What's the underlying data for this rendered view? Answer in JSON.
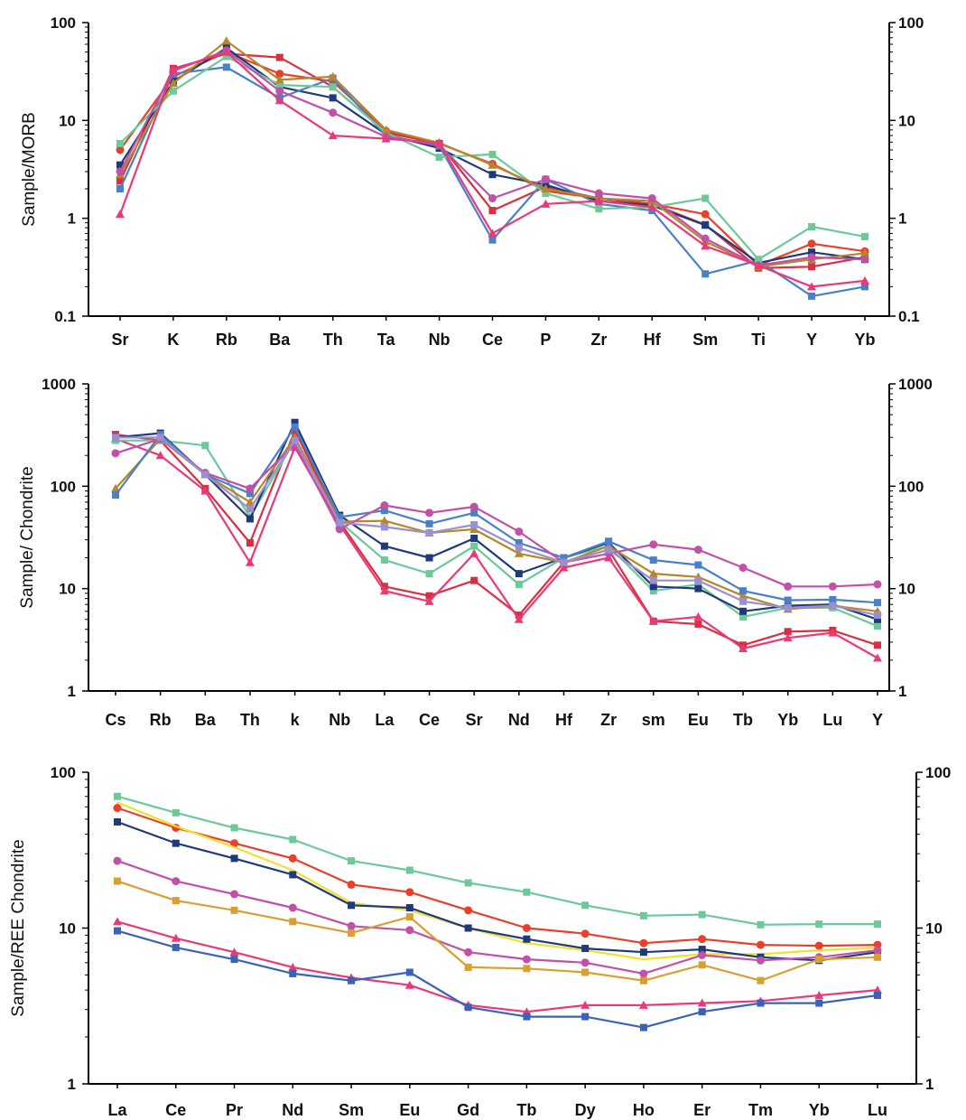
{
  "chart_data": [
    {
      "type": "line",
      "ylabel": "Sample/MORB",
      "yscale": "log",
      "ylim": [
        0.1,
        100
      ],
      "yticks": [
        "0.1",
        "1",
        "10",
        "100"
      ],
      "right_axis_ticks": true,
      "grid": false,
      "categories": [
        "Sr",
        "K",
        "Rb",
        "Ba",
        "Th",
        "Ta",
        "Nb",
        "Ce",
        "P",
        "Zr",
        "Hf",
        "Sm",
        "Ti",
        "Y",
        "Yb"
      ],
      "series": [
        {
          "color": "#e8402a",
          "marker": "circle",
          "values": [
            5.0,
            28,
            50,
            30,
            25,
            7.8,
            5.8,
            3.6,
            1.9,
            1.6,
            1.4,
            1.1,
            0.33,
            0.55,
            0.46
          ]
        },
        {
          "color": "#d83040",
          "marker": "square",
          "values": [
            2.4,
            34,
            48,
            44,
            22,
            7.5,
            5.8,
            1.2,
            2.1,
            1.6,
            1.4,
            0.86,
            0.31,
            0.32,
            0.4
          ]
        },
        {
          "color": "#1f3a7a",
          "marker": "square",
          "values": [
            3.5,
            25,
            55,
            22,
            17,
            7.2,
            5.2,
            2.8,
            2.2,
            1.5,
            1.35,
            0.85,
            0.35,
            0.45,
            0.38
          ]
        },
        {
          "color": "#4a80c8",
          "marker": "square",
          "values": [
            2.0,
            30,
            35,
            17,
            27,
            7.0,
            5.5,
            0.6,
            2.5,
            1.4,
            1.2,
            0.27,
            0.37,
            0.16,
            0.2
          ]
        },
        {
          "color": "#6dc89a",
          "marker": "square",
          "values": [
            5.8,
            20,
            45,
            23,
            22,
            7.5,
            4.2,
            4.5,
            1.8,
            1.25,
            1.3,
            1.6,
            0.38,
            0.82,
            0.65
          ]
        },
        {
          "color": "#b8862a",
          "marker": "triangle",
          "values": [
            2.8,
            24,
            65,
            26,
            28,
            8.0,
            5.9,
            3.5,
            2.0,
            1.6,
            1.5,
            0.58,
            0.32,
            0.38,
            0.44
          ]
        },
        {
          "color": "#c050a8",
          "marker": "circle",
          "values": [
            3.0,
            32,
            52,
            20,
            12,
            6.8,
            5.6,
            1.6,
            2.5,
            1.8,
            1.6,
            0.62,
            0.33,
            0.4,
            0.38
          ]
        },
        {
          "color": "#e83a78",
          "marker": "triangle",
          "values": [
            1.1,
            33,
            50,
            16,
            7.0,
            6.5,
            5.9,
            0.7,
            1.4,
            1.5,
            1.3,
            0.52,
            0.33,
            0.2,
            0.23
          ]
        }
      ]
    },
    {
      "type": "line",
      "ylabel": "Sample/ Chondrite",
      "yscale": "log",
      "ylim": [
        1,
        1000
      ],
      "yticks": [
        "1",
        "10",
        "100",
        "1000"
      ],
      "right_axis_ticks": true,
      "grid": false,
      "categories": [
        "Cs",
        "Rb",
        "Ba",
        "Th",
        "k",
        "Nb",
        "La",
        "Ce",
        "Sr",
        "Nd",
        "Hf",
        "Zr",
        "sm",
        "Eu",
        "Tb",
        "Yb",
        "Lu",
        "Y"
      ],
      "series": [
        {
          "color": "#d83040",
          "marker": "square",
          "values": [
            320,
            280,
            95,
            28,
            350,
            45,
            10.5,
            8.5,
            12,
            5.5,
            18,
            24,
            4.8,
            4.5,
            2.8,
            3.8,
            3.9,
            2.8
          ]
        },
        {
          "color": "#e83a78",
          "marker": "triangle",
          "values": [
            290,
            200,
            90,
            18,
            240,
            42,
            9.5,
            7.5,
            22,
            5.0,
            16,
            20,
            4.8,
            5.3,
            2.6,
            3.3,
            3.7,
            2.1
          ]
        },
        {
          "color": "#6dc89a",
          "marker": "square",
          "values": [
            280,
            280,
            250,
            50,
            280,
            45,
            19,
            14,
            26,
            11,
            20,
            26,
            9.5,
            11,
            5.3,
            6.5,
            6.5,
            4.3
          ]
        },
        {
          "color": "#1f3a7a",
          "marker": "square",
          "values": [
            300,
            330,
            130,
            48,
            420,
            52,
            26,
            20,
            31,
            14,
            20,
            28,
            10.5,
            10,
            6.0,
            6.8,
            7.0,
            5.0
          ]
        },
        {
          "color": "#b8862a",
          "marker": "triangle",
          "values": [
            95,
            290,
            130,
            70,
            300,
            45,
            46,
            35,
            38,
            22,
            18,
            26,
            14,
            13,
            8.5,
            6.3,
            6.8,
            6.0
          ]
        },
        {
          "color": "#4a80c8",
          "marker": "square",
          "values": [
            82,
            320,
            130,
            85,
            380,
            50,
            58,
            43,
            55,
            28,
            20,
            29,
            19,
            17,
            9.5,
            7.7,
            7.8,
            7.3
          ]
        },
        {
          "color": "#c050a8",
          "marker": "circle",
          "values": [
            210,
            290,
            135,
            95,
            260,
            38,
            65,
            55,
            63,
            36,
            18,
            22,
            27,
            24,
            16,
            10.5,
            10.5,
            11
          ]
        },
        {
          "color": "#9b8fd0",
          "marker": "square",
          "values": [
            300,
            300,
            130,
            60,
            280,
            44,
            40,
            35,
            42,
            25,
            18,
            24,
            12,
            12,
            7.5,
            6.5,
            6.8,
            5.5
          ]
        }
      ]
    },
    {
      "type": "line",
      "ylabel": "Sample/REE Chondrite",
      "yscale": "log",
      "ylim": [
        1,
        100
      ],
      "yticks": [
        "1",
        "10",
        "100"
      ],
      "right_axis_ticks": true,
      "grid": false,
      "categories": [
        "La",
        "Ce",
        "Pr",
        "Nd",
        "Sm",
        "Eu",
        "Gd",
        "Tb",
        "Dy",
        "Ho",
        "Er",
        "Tm",
        "Yb",
        "Lu"
      ],
      "series": [
        {
          "color": "#6dc89a",
          "marker": "square",
          "values": [
            70,
            55,
            44,
            37,
            27,
            23.5,
            19.5,
            17,
            14,
            12,
            12.2,
            10.5,
            10.6,
            10.6
          ]
        },
        {
          "color": "#e8402a",
          "marker": "circle",
          "values": [
            59,
            44,
            35,
            28,
            19,
            17,
            13,
            10,
            9.2,
            8,
            8.5,
            7.8,
            7.7,
            7.8
          ]
        },
        {
          "color": "#f0e030",
          "marker": "none",
          "values": [
            64,
            45,
            33,
            23.5,
            14.5,
            13,
            10,
            8.0,
            7.2,
            6.3,
            6.8,
            6.8,
            7.2,
            7.5
          ]
        },
        {
          "color": "#1f3a7a",
          "marker": "square",
          "values": [
            48,
            35,
            28,
            22,
            14,
            13.5,
            10,
            8.5,
            7.4,
            7,
            7.3,
            6.5,
            6.2,
            7.0
          ]
        },
        {
          "color": "#c050a8",
          "marker": "circle",
          "values": [
            27,
            20,
            16.5,
            13.5,
            10.3,
            9.7,
            7.0,
            6.3,
            6.0,
            5.1,
            6.7,
            6.2,
            6.5,
            7.2
          ]
        },
        {
          "color": "#d8a030",
          "marker": "square",
          "values": [
            20,
            15,
            13,
            11,
            9.3,
            11.8,
            5.6,
            5.5,
            5.2,
            4.6,
            5.8,
            4.6,
            6.3,
            6.5
          ]
        },
        {
          "color": "#e83a78",
          "marker": "triangle",
          "values": [
            11,
            8.6,
            7.0,
            5.6,
            4.8,
            4.3,
            3.2,
            2.9,
            3.2,
            3.2,
            3.3,
            3.4,
            3.7,
            4.0
          ]
        },
        {
          "color": "#3a62b8",
          "marker": "square",
          "values": [
            9.6,
            7.5,
            6.3,
            5.1,
            4.6,
            5.2,
            3.1,
            2.7,
            2.7,
            2.3,
            2.9,
            3.3,
            3.3,
            3.7
          ]
        }
      ]
    }
  ]
}
